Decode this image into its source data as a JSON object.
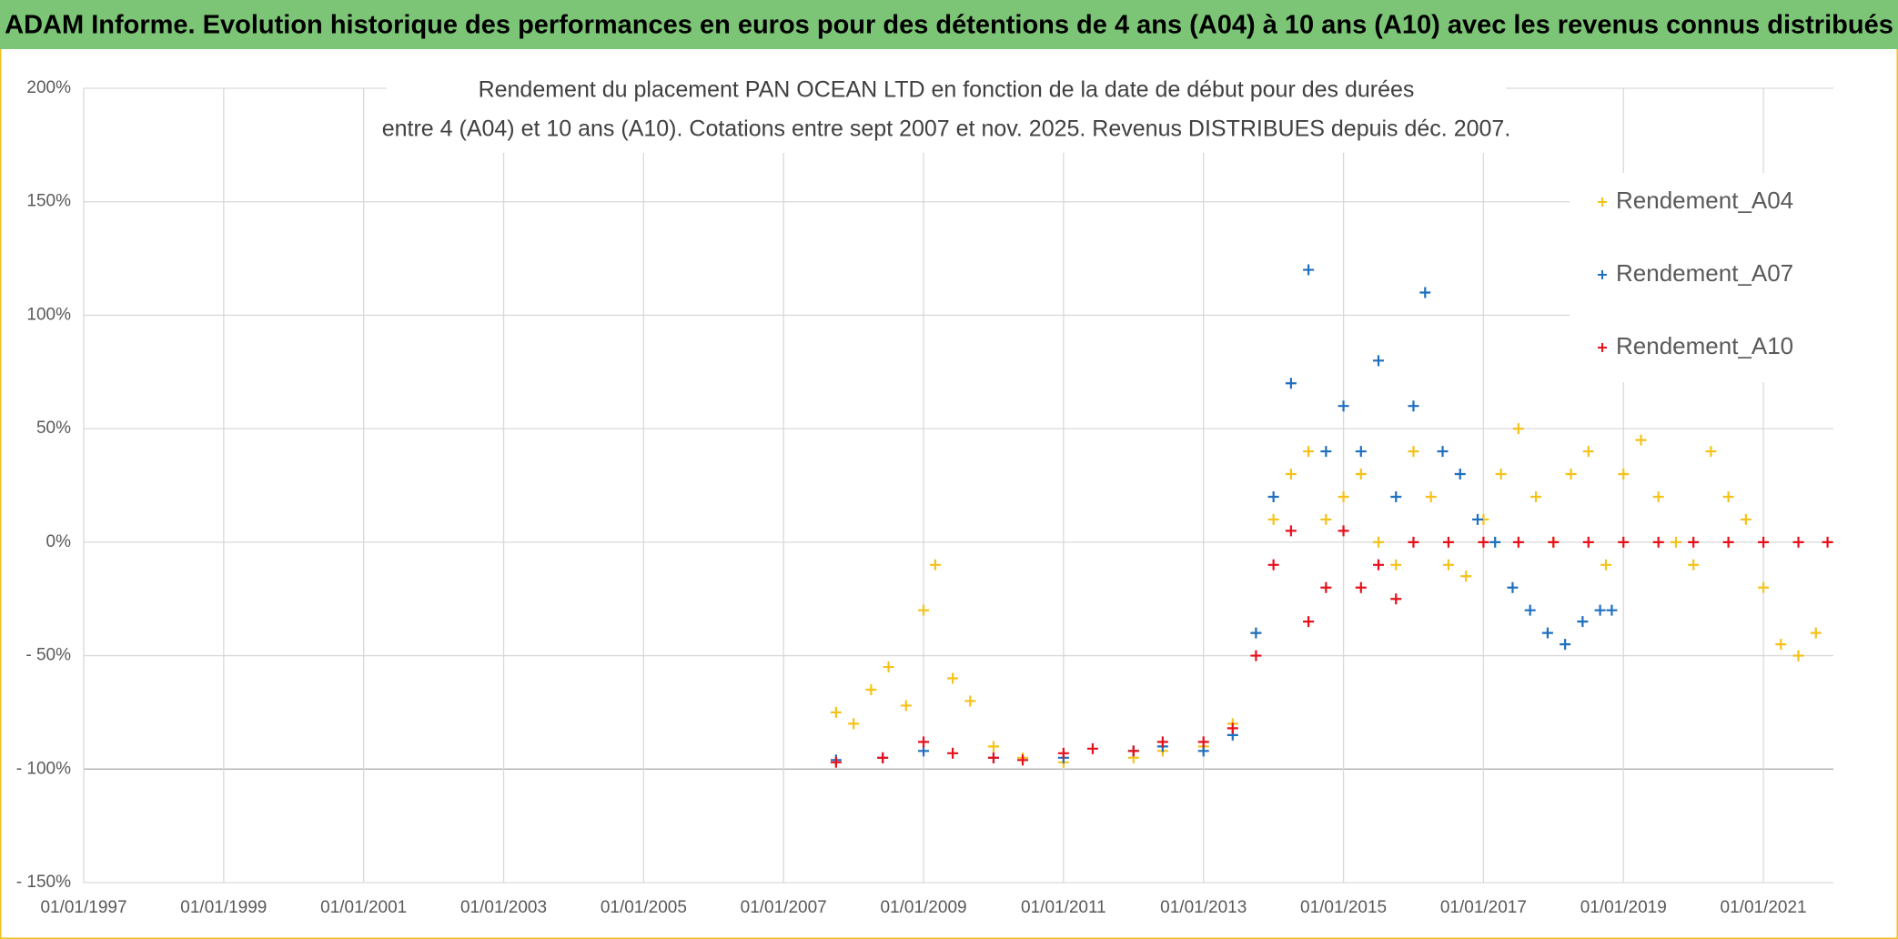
{
  "header": {
    "title": "ADAM Informe. Evolution historique des performances en euros pour des détentions de 4 ans (A04) à 10 ans (A10) avec les revenus connus distribués"
  },
  "chart_data": {
    "type": "scatter",
    "title": [
      "Rendement du placement PAN OCEAN LTD en fonction de la date de début pour des durées",
      "entre 4 (A04) et 10 ans (A10). Cotations entre sept 2007 et nov. 2025. Revenus DISTRIBUES depuis déc. 2007."
    ],
    "xlim": [
      "01/01/1997",
      "01/01/2022"
    ],
    "xticks": [
      "01/01/1997",
      "01/01/1999",
      "01/01/2001",
      "01/01/2003",
      "01/01/2005",
      "01/01/2007",
      "01/01/2009",
      "01/01/2011",
      "01/01/2013",
      "01/01/2015",
      "01/01/2017",
      "01/01/2019",
      "01/01/2021"
    ],
    "ylim": [
      -150,
      200
    ],
    "yticks": [
      {
        "value": -150,
        "label": "- 150%"
      },
      {
        "value": -100,
        "label": "- 100%"
      },
      {
        "value": -50,
        "label": "- 50%"
      },
      {
        "value": 0,
        "label": "0%"
      },
      {
        "value": 50,
        "label": "50%"
      },
      {
        "value": 100,
        "label": "100%"
      },
      {
        "value": 150,
        "label": "150%"
      },
      {
        "value": 200,
        "label": "200%"
      }
    ],
    "grid": true,
    "legend": "upper right",
    "series": [
      {
        "name": "Rendement_A04",
        "color": "#f5c21b",
        "x": [
          "01/10/2007",
          "01/01/2008",
          "01/04/2008",
          "01/07/2008",
          "01/10/2008",
          "01/01/2009",
          "01/03/2009",
          "01/06/2009",
          "01/09/2009",
          "01/01/2010",
          "01/06/2010",
          "01/01/2011",
          "01/01/2012",
          "01/06/2012",
          "01/01/2013",
          "01/06/2013",
          "01/10/2013",
          "01/01/2014",
          "01/04/2014",
          "01/07/2014",
          "01/10/2014",
          "01/01/2015",
          "01/04/2015",
          "01/07/2015",
          "01/10/2015",
          "01/01/2016",
          "01/04/2016",
          "01/07/2016",
          "01/10/2016",
          "01/01/2017",
          "01/04/2017",
          "01/07/2017",
          "01/10/2017",
          "01/01/2018",
          "01/04/2018",
          "01/07/2018",
          "01/10/2018",
          "01/01/2019",
          "01/04/2019",
          "01/07/2019",
          "01/10/2019",
          "01/01/2020",
          "01/04/2020",
          "01/07/2020",
          "01/10/2020",
          "01/01/2021",
          "01/04/2021",
          "01/07/2021",
          "01/10/2021"
        ],
        "values": [
          -75,
          -80,
          -65,
          -55,
          -72,
          -30,
          -10,
          -60,
          -70,
          -90,
          -95,
          -97,
          -95,
          -92,
          -90,
          -80,
          -40,
          10,
          30,
          40,
          10,
          20,
          30,
          0,
          -10,
          40,
          20,
          -10,
          -15,
          10,
          30,
          50,
          20,
          0,
          30,
          40,
          -10,
          30,
          45,
          20,
          0,
          -10,
          40,
          20,
          10,
          -20,
          -45,
          -50,
          -40
        ]
      },
      {
        "name": "Rendement_A07",
        "color": "#1f6fbf",
        "x": [
          "01/10/2007",
          "01/06/2008",
          "01/01/2009",
          "01/01/2010",
          "01/01/2011",
          "01/01/2012",
          "01/06/2012",
          "01/01/2013",
          "01/06/2013",
          "01/10/2013",
          "01/01/2014",
          "01/04/2014",
          "01/07/2014",
          "01/10/2014",
          "01/01/2015",
          "01/04/2015",
          "01/07/2015",
          "01/10/2015",
          "01/01/2016",
          "01/03/2016",
          "01/06/2016",
          "01/09/2016",
          "01/12/2016",
          "01/03/2017",
          "01/06/2017",
          "01/09/2017",
          "01/12/2017",
          "01/03/2018",
          "01/06/2018",
          "01/09/2018",
          "01/11/2018"
        ],
        "values": [
          -96,
          -95,
          -92,
          -95,
          -95,
          -92,
          -90,
          -92,
          -85,
          -40,
          20,
          70,
          120,
          40,
          60,
          40,
          80,
          20,
          60,
          110,
          40,
          30,
          10,
          0,
          -20,
          -30,
          -40,
          -45,
          -35,
          -30,
          -30
        ]
      },
      {
        "name": "Rendement_A10",
        "color": "#e8101a",
        "x": [
          "01/10/2007",
          "01/06/2008",
          "01/01/2009",
          "01/06/2009",
          "01/01/2010",
          "01/06/2010",
          "01/01/2011",
          "01/06/2011",
          "01/01/2012",
          "01/06/2012",
          "01/01/2013",
          "01/06/2013",
          "01/10/2013",
          "01/01/2014",
          "01/04/2014",
          "01/07/2014",
          "01/10/2014",
          "01/01/2015",
          "01/04/2015",
          "01/07/2015",
          "01/10/2015",
          "01/01/2016",
          "01/07/2016",
          "01/01/2017",
          "01/07/2017",
          "01/01/2018",
          "01/07/2018",
          "01/01/2019",
          "01/07/2019",
          "01/01/2020",
          "01/07/2020",
          "01/01/2021",
          "01/07/2021",
          "01/12/2021"
        ],
        "values": [
          -97,
          -95,
          -88,
          -93,
          -95,
          -96,
          -93,
          -91,
          -92,
          -88,
          -88,
          -82,
          -50,
          -10,
          5,
          -35,
          -20,
          5,
          -20,
          -10,
          -25,
          0,
          0,
          0,
          0,
          0,
          0,
          0,
          0,
          0,
          0,
          0,
          0,
          0
        ]
      }
    ]
  }
}
